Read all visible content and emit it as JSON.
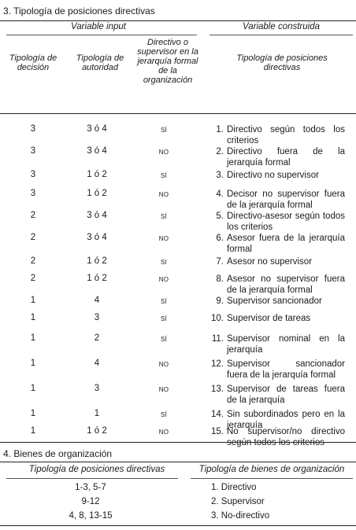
{
  "section3": {
    "title": "3. Tipología de posiciones directivas",
    "group_input": "Variable input",
    "group_constructed": "Variable construida",
    "col_decision": "Tipología de decisión",
    "col_authority": "Tipología de autoridad",
    "col_directive": "Directivo o supervisor en la jerarquía formal de la organización",
    "col_constructed": "Tipología de posiciones directivas",
    "rows": [
      {
        "decision": "3",
        "authority": "3 ó 4",
        "formal": "SÍ",
        "num": "1.",
        "label": "Directivo según todos los criterios"
      },
      {
        "decision": "3",
        "authority": "3 ó 4",
        "formal": "NO",
        "num": "2.",
        "label": "Directivo fuera de la jerarquía formal"
      },
      {
        "decision": "3",
        "authority": "1 ó 2",
        "formal": "SÍ",
        "num": "3.",
        "label": "Directivo no supervisor"
      },
      {
        "decision": "3",
        "authority": "1 ó 2",
        "formal": "NO",
        "num": "4.",
        "label": "Decisor no supervisor fuera de la jerarquía formal"
      },
      {
        "decision": "2",
        "authority": "3 ó 4",
        "formal": "SÍ",
        "num": "5.",
        "label": "Directivo-asesor según todos los criterios"
      },
      {
        "decision": "2",
        "authority": "3 ó 4",
        "formal": "NO",
        "num": "6.",
        "label": "Asesor fuera de la jerarquía formal"
      },
      {
        "decision": "2",
        "authority": "1 ó 2",
        "formal": "SI",
        "num": "7.",
        "label": "Asesor no supervisor"
      },
      {
        "decision": "2",
        "authority": "1 ó 2",
        "formal": "NO",
        "num": "8.",
        "label": "Asesor no supervisor fuera de la jerarquía formal"
      },
      {
        "decision": "1",
        "authority": "4",
        "formal": "SÍ",
        "num": "9.",
        "label": "Supervisor sancionador"
      },
      {
        "decision": "1",
        "authority": "3",
        "formal": "SÍ",
        "num": "10.",
        "label": "Supervisor de tareas"
      },
      {
        "decision": "1",
        "authority": "2",
        "formal": "SÍ",
        "num": "11.",
        "label": "Supervisor nominal en la jerarquía"
      },
      {
        "decision": "1",
        "authority": "4",
        "formal": "NO",
        "num": "12.",
        "label": "Supervisor sancionador fuera de la jerarquía formal"
      },
      {
        "decision": "1",
        "authority": "3",
        "formal": "NO",
        "num": "13.",
        "label": "Supervisor de tareas fuera de la jerarquía"
      },
      {
        "decision": "1",
        "authority": "1",
        "formal": "SÍ",
        "num": "14.",
        "label": "Sin subordinados pero en la jerarquía"
      },
      {
        "decision": "1",
        "authority": "1 ó 2",
        "formal": "NO",
        "num": "15.",
        "label": "No supervisor/no directivo según todos los criterios"
      }
    ]
  },
  "section4": {
    "title": "4. Bienes de organización",
    "col_left": "Tipología de posiciones directivas",
    "col_right": "Tipología de bienes de organización",
    "rows": [
      {
        "positions": "1-3, 5-7",
        "goods": "1. Directivo"
      },
      {
        "positions": "9-12",
        "goods": "2. Supervisor"
      },
      {
        "positions": "4, 8, 13-15",
        "goods": "3. No-directivo"
      }
    ]
  }
}
